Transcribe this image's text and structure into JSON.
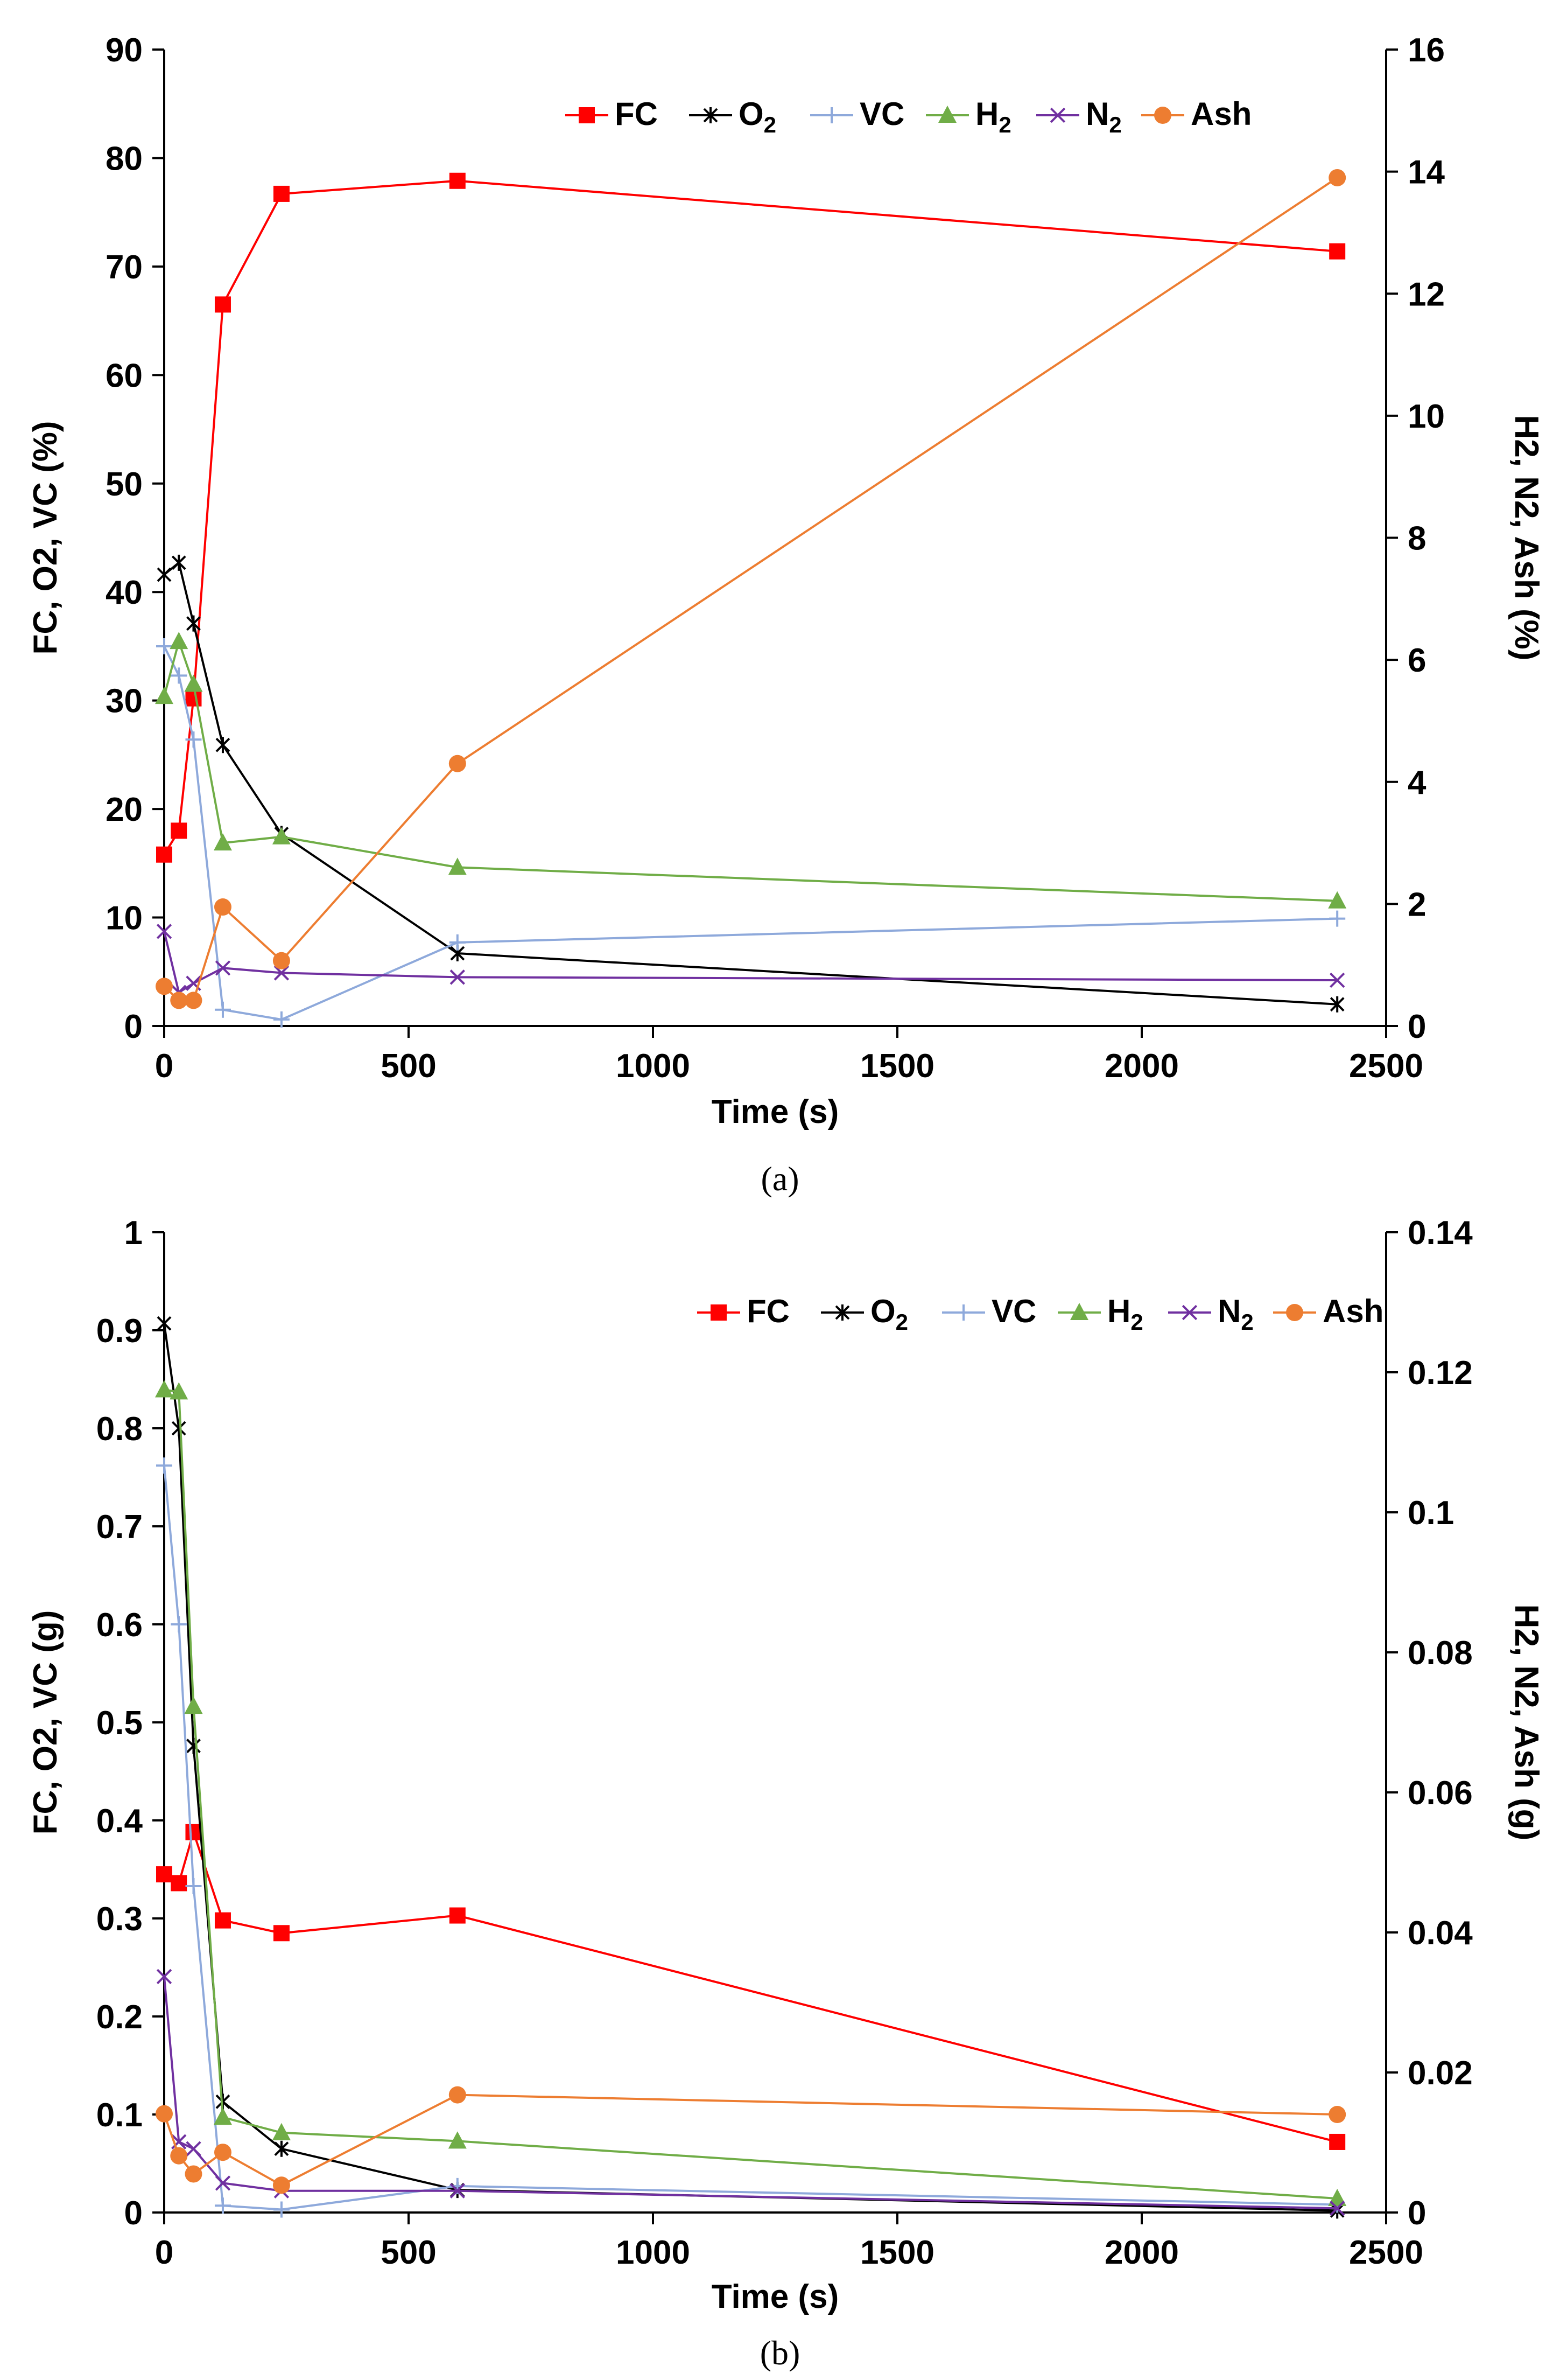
{
  "charts": [
    {
      "caption": "(a)",
      "xlabel": "Time (s)",
      "ylabel_left": "FC, O2, VC (%)",
      "ylabel_right": "H2, N2, Ash (%)",
      "xticks": [
        "0",
        "500",
        "1000",
        "1500",
        "2000",
        "2500"
      ],
      "yticks_left": [
        "0",
        "10",
        "20",
        "30",
        "40",
        "50",
        "60",
        "70",
        "80",
        "90"
      ],
      "yticks_right": [
        "0",
        "2",
        "4",
        "6",
        "8",
        "10",
        "12",
        "14",
        "16"
      ]
    },
    {
      "caption": "(b)",
      "xlabel": "Time (s)",
      "ylabel_left": "FC, O2, VC (g)",
      "ylabel_right": "H2, N2, Ash (g)",
      "xticks": [
        "0",
        "500",
        "1000",
        "1500",
        "2000",
        "2500"
      ],
      "yticks_left": [
        "0",
        "0.1",
        "0.2",
        "0.3",
        "0.4",
        "0.5",
        "0.6",
        "0.7",
        "0.8",
        "0.9",
        "1"
      ],
      "yticks_right": [
        "0",
        "0.02",
        "0.04",
        "0.06",
        "0.08",
        "0.1",
        "0.12",
        "0.14"
      ]
    }
  ],
  "chart_data": [
    {
      "type": "line",
      "title": "",
      "xlabel": "Time (s)",
      "ylabel": "FC, O2, VC (%)",
      "ylabel_secondary": "H2, N2, Ash (%)",
      "xlim": [
        0,
        2500
      ],
      "ylim": [
        0,
        90
      ],
      "ylim_secondary": [
        0,
        16
      ],
      "grid": false,
      "legend_position": "top-right",
      "x": [
        0,
        30,
        60,
        120,
        240,
        600,
        2400
      ],
      "series": [
        {
          "name": "FC",
          "axis": "left",
          "color": "#ff0000",
          "marker": "square",
          "values": [
            15.8,
            18.0,
            30.2,
            66.5,
            76.7,
            77.9,
            71.4
          ]
        },
        {
          "name": "O2",
          "axis": "left",
          "color": "#000000",
          "marker": "asterisk",
          "values": [
            41.6,
            42.7,
            37.1,
            25.9,
            17.7,
            6.7,
            2.0
          ]
        },
        {
          "name": "VC",
          "axis": "left",
          "color": "#8ea9db",
          "marker": "plus",
          "values": [
            35.0,
            32.3,
            26.4,
            1.5,
            0.6,
            7.7,
            9.9
          ]
        },
        {
          "name": "H2",
          "axis": "right",
          "color": "#70ad47",
          "marker": "triangle",
          "values": [
            5.4,
            6.3,
            5.6,
            3.0,
            3.1,
            2.6,
            2.05
          ]
        },
        {
          "name": "N2",
          "axis": "right",
          "color": "#7030a0",
          "marker": "x",
          "values": [
            1.55,
            0.55,
            0.7,
            0.95,
            0.87,
            0.8,
            0.75
          ]
        },
        {
          "name": "Ash",
          "axis": "right",
          "color": "#ed7d31",
          "marker": "circle",
          "values": [
            0.65,
            0.42,
            0.42,
            1.95,
            1.07,
            4.3,
            13.9
          ]
        }
      ]
    },
    {
      "type": "line",
      "title": "",
      "xlabel": "Time (s)",
      "ylabel": "FC, O2, VC (g)",
      "ylabel_secondary": "H2, N2, Ash (g)",
      "xlim": [
        0,
        2500
      ],
      "ylim": [
        0,
        1
      ],
      "ylim_secondary": [
        0,
        0.14
      ],
      "grid": false,
      "legend_position": "top-right",
      "x": [
        0,
        30,
        60,
        120,
        240,
        600,
        2400
      ],
      "series": [
        {
          "name": "FC",
          "axis": "left",
          "color": "#ff0000",
          "marker": "square",
          "values": [
            0.345,
            0.336,
            0.388,
            0.298,
            0.285,
            0.303,
            0.072
          ]
        },
        {
          "name": "O2",
          "axis": "left",
          "color": "#000000",
          "marker": "asterisk",
          "values": [
            0.907,
            0.8,
            0.476,
            0.113,
            0.065,
            0.023,
            0.002
          ]
        },
        {
          "name": "VC",
          "axis": "left",
          "color": "#8ea9db",
          "marker": "plus",
          "values": [
            0.762,
            0.6,
            0.333,
            0.007,
            0.003,
            0.027,
            0.008
          ]
        },
        {
          "name": "H2",
          "axis": "right",
          "color": "#70ad47",
          "marker": "triangle",
          "values": [
            0.1175,
            0.1172,
            0.0723,
            0.0136,
            0.0114,
            0.0102,
            0.002
          ]
        },
        {
          "name": "N2",
          "axis": "right",
          "color": "#7030a0",
          "marker": "x",
          "values": [
            0.0337,
            0.0101,
            0.0091,
            0.0042,
            0.0031,
            0.0031,
            0.0006
          ]
        },
        {
          "name": "Ash",
          "axis": "right",
          "color": "#ed7d31",
          "marker": "circle",
          "values": [
            0.0141,
            0.0081,
            0.0055,
            0.0086,
            0.0039,
            0.0168,
            0.014
          ]
        }
      ]
    }
  ]
}
